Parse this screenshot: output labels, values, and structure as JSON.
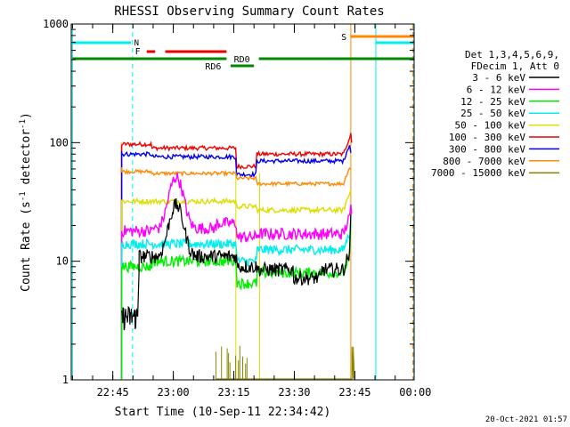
{
  "chart_data": {
    "type": "line",
    "title": "RHESSI Observing Summary Count Rates",
    "xlabel": "Start Time (10-Sep-11 22:34:42)",
    "ylabel": "Count Rate (s",
    "ylabel_sup1": "-1",
    "ylabel_mid": " detector",
    "ylabel_sup2": "-1",
    "ylabel_end": ")",
    "y_scale": "log",
    "ylim": [
      1,
      1000
    ],
    "xlim_minutes": [
      0,
      85
    ],
    "y_ticks": [
      "1",
      "10",
      "100",
      "1000"
    ],
    "x_ticks": [
      {
        "label": "22:45",
        "min": 10.3
      },
      {
        "label": "23:00",
        "min": 25.3
      },
      {
        "label": "23:15",
        "min": 40.3
      },
      {
        "label": "23:30",
        "min": 55.3
      },
      {
        "label": "23:45",
        "min": 70.3
      },
      {
        "label": "00:00",
        "min": 85.3
      }
    ],
    "legend_header": [
      "Det 1,3,4,5,6,9,",
      "FDecim 1, Att 0"
    ],
    "series": [
      {
        "name": "3 - 6 keV",
        "color": "#000000"
      },
      {
        "name": "6 - 12 keV",
        "color": "#ff00ff"
      },
      {
        "name": "12 - 25 keV",
        "color": "#00ee00"
      },
      {
        "name": "25 - 50 keV",
        "color": "#00eeee"
      },
      {
        "name": "50 - 100 keV",
        "color": "#dddd00"
      },
      {
        "name": "100 - 300 keV",
        "color": "#ee0000"
      },
      {
        "name": "300 - 800 keV",
        "color": "#0000ee"
      },
      {
        "name": "800 - 7000 keV",
        "color": "#ff8800"
      },
      {
        "name": "7000 - 15000 keV",
        "color": "#888800"
      }
    ],
    "flags": [
      {
        "label": "N",
        "color": "#00eeee"
      },
      {
        "label": "F",
        "color": "#ee0000"
      },
      {
        "label": "RD0",
        "color": "#008800"
      },
      {
        "label": "RD6",
        "color": "#008800"
      },
      {
        "label": "S",
        "color": "#ff8800"
      }
    ],
    "timestamp": "20-Oct-2021 01:57"
  }
}
